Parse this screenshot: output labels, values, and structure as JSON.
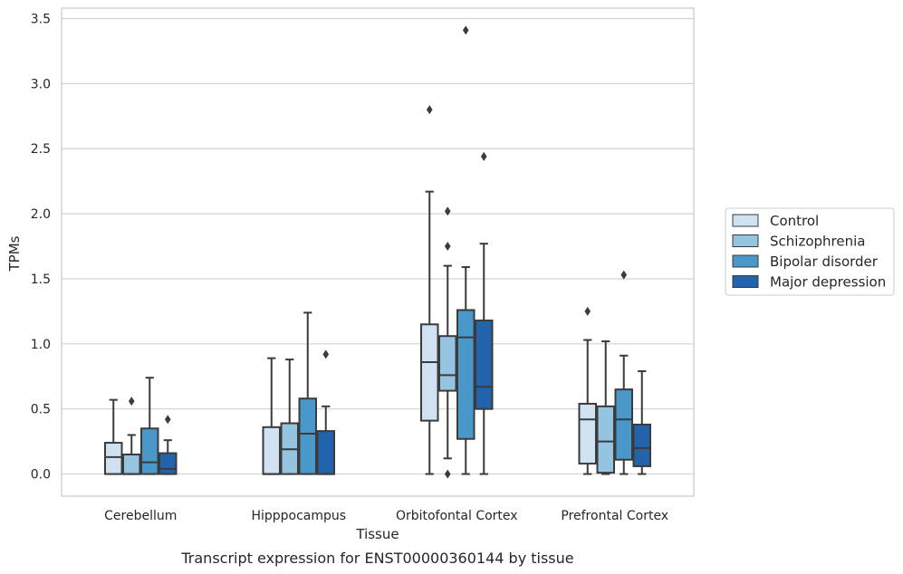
{
  "chart_data": {
    "type": "box",
    "caption": "Transcript expression for ENST00000360144 by tissue",
    "xlabel": "Tissue",
    "ylabel": "TPMs",
    "ylim": [
      -0.17,
      3.58
    ],
    "yticks": [
      0.0,
      0.5,
      1.0,
      1.5,
      2.0,
      2.5,
      3.0,
      3.5
    ],
    "ytick_labels": [
      "0.0",
      "0.5",
      "1.0",
      "1.5",
      "2.0",
      "2.5",
      "3.0",
      "3.5"
    ],
    "grid": "horizontal",
    "legend_position": "right",
    "categories": [
      "Cerebellum",
      "Hipppocampus",
      "Orbitofontal Cortex",
      "Prefrontal Cortex"
    ],
    "series": [
      {
        "name": "Control",
        "color": "#d0e1f2",
        "boxes": [
          {
            "min": 0.0,
            "q1": 0.0,
            "median": 0.13,
            "q3": 0.24,
            "max": 0.57,
            "outliers": []
          },
          {
            "min": 0.0,
            "q1": 0.0,
            "median": 0.0,
            "q3": 0.36,
            "max": 0.89,
            "outliers": []
          },
          {
            "min": 0.0,
            "q1": 0.41,
            "median": 0.86,
            "q3": 1.15,
            "max": 2.17,
            "outliers": [
              2.8
            ]
          },
          {
            "min": 0.0,
            "q1": 0.08,
            "median": 0.42,
            "q3": 0.54,
            "max": 1.03,
            "outliers": [
              1.25
            ]
          }
        ]
      },
      {
        "name": "Schizophrenia",
        "color": "#94c4df",
        "boxes": [
          {
            "min": 0.0,
            "q1": 0.0,
            "median": 0.0,
            "q3": 0.15,
            "max": 0.3,
            "outliers": [
              0.56
            ]
          },
          {
            "min": 0.0,
            "q1": 0.0,
            "median": 0.19,
            "q3": 0.39,
            "max": 0.88,
            "outliers": []
          },
          {
            "min": 0.12,
            "q1": 0.64,
            "median": 0.76,
            "q3": 1.06,
            "max": 1.6,
            "outliers": [
              1.75,
              2.02,
              0.0
            ]
          },
          {
            "min": 0.0,
            "q1": 0.01,
            "median": 0.25,
            "q3": 0.52,
            "max": 1.02,
            "outliers": []
          }
        ]
      },
      {
        "name": "Bipolar disorder",
        "color": "#4a98c9",
        "boxes": [
          {
            "min": 0.0,
            "q1": 0.0,
            "median": 0.09,
            "q3": 0.35,
            "max": 0.74,
            "outliers": []
          },
          {
            "min": 0.0,
            "q1": 0.0,
            "median": 0.31,
            "q3": 0.58,
            "max": 1.24,
            "outliers": []
          },
          {
            "min": 0.0,
            "q1": 0.27,
            "median": 1.05,
            "q3": 1.26,
            "max": 1.59,
            "outliers": [
              3.41
            ]
          },
          {
            "min": 0.0,
            "q1": 0.11,
            "median": 0.42,
            "q3": 0.65,
            "max": 0.91,
            "outliers": [
              1.53
            ]
          }
        ]
      },
      {
        "name": "Major depression",
        "color": "#2164ab",
        "boxes": [
          {
            "min": 0.0,
            "q1": 0.0,
            "median": 0.04,
            "q3": 0.16,
            "max": 0.26,
            "outliers": [
              0.42
            ]
          },
          {
            "min": 0.0,
            "q1": 0.0,
            "median": 0.0,
            "q3": 0.33,
            "max": 0.52,
            "outliers": [
              0.92
            ]
          },
          {
            "min": 0.0,
            "q1": 0.5,
            "median": 0.67,
            "q3": 1.18,
            "max": 1.77,
            "outliers": [
              2.44
            ]
          },
          {
            "min": 0.0,
            "q1": 0.06,
            "median": 0.2,
            "q3": 0.38,
            "max": 0.79,
            "outliers": []
          }
        ]
      }
    ]
  }
}
